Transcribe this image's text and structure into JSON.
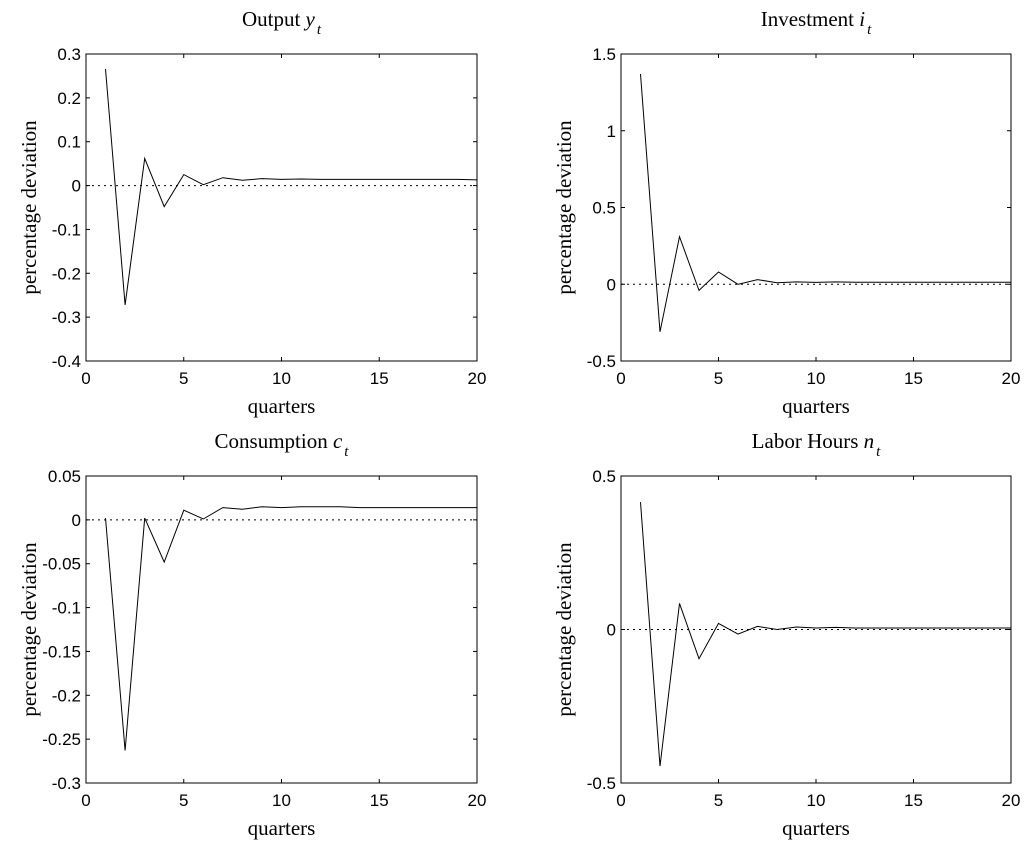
{
  "chart_data": [
    {
      "type": "line",
      "title": "Output",
      "title_var": "y",
      "title_sub": "t",
      "xlabel": "quarters",
      "ylabel": "percentage deviation",
      "xlim": [
        0,
        20
      ],
      "ylim": [
        -0.4,
        0.3
      ],
      "xticks": [
        0,
        5,
        10,
        15,
        20
      ],
      "yticks": [
        -0.4,
        -0.3,
        -0.2,
        -0.1,
        0,
        0.1,
        0.2,
        0.3
      ],
      "ytick_labels": [
        "-0.4",
        "-0.3",
        "-0.2",
        "-0.1",
        "0",
        "0.1",
        "0.2",
        "0.3"
      ],
      "grid": false,
      "x": [
        1,
        2,
        3,
        4,
        5,
        6,
        7,
        8,
        9,
        10,
        11,
        12,
        13,
        14,
        15,
        16,
        17,
        18,
        19,
        20
      ],
      "series": [
        {
          "values": [
            0.266,
            -0.272,
            0.062,
            -0.048,
            0.025,
            0.002,
            0.018,
            0.012,
            0.016,
            0.014,
            0.015,
            0.014,
            0.014,
            0.014,
            0.014,
            0.014,
            0.014,
            0.014,
            0.014,
            0.013
          ]
        }
      ],
      "reference_line": {
        "y": 0,
        "style": "dotted"
      }
    },
    {
      "type": "line",
      "title": "Investment",
      "title_var": "i",
      "title_sub": "t",
      "xlabel": "quarters",
      "ylabel": "percentage deviation",
      "xlim": [
        0,
        20
      ],
      "ylim": [
        -0.5,
        1.5
      ],
      "xticks": [
        0,
        5,
        10,
        15,
        20
      ],
      "yticks": [
        -0.5,
        0,
        0.5,
        1,
        1.5
      ],
      "ytick_labels": [
        "-0.5",
        "0",
        "0.5",
        "1",
        "1.5"
      ],
      "grid": false,
      "x": [
        1,
        2,
        3,
        4,
        5,
        6,
        7,
        8,
        9,
        10,
        11,
        12,
        13,
        14,
        15,
        16,
        17,
        18,
        19,
        20
      ],
      "series": [
        {
          "values": [
            1.37,
            -0.31,
            0.31,
            -0.04,
            0.08,
            0.0,
            0.03,
            0.01,
            0.015,
            0.012,
            0.015,
            0.013,
            0.013,
            0.013,
            0.013,
            0.013,
            0.013,
            0.013,
            0.013,
            0.013
          ]
        }
      ],
      "reference_line": {
        "y": 0,
        "style": "dotted"
      }
    },
    {
      "type": "line",
      "title": "Consumption",
      "title_var": "c",
      "title_sub": "t",
      "xlabel": "quarters",
      "ylabel": "percentage deviation",
      "xlim": [
        0,
        20
      ],
      "ylim": [
        -0.3,
        0.05
      ],
      "xticks": [
        0,
        5,
        10,
        15,
        20
      ],
      "yticks": [
        -0.3,
        -0.25,
        -0.2,
        -0.15,
        -0.1,
        -0.05,
        0,
        0.05
      ],
      "ytick_labels": [
        "-0.3",
        "-0.25",
        "-0.2",
        "-0.15",
        "-0.1",
        "-0.05",
        "0",
        "0.05"
      ],
      "grid": false,
      "x": [
        1,
        2,
        3,
        4,
        5,
        6,
        7,
        8,
        9,
        10,
        11,
        12,
        13,
        14,
        15,
        16,
        17,
        18,
        19,
        20
      ],
      "series": [
        {
          "values": [
            0.002,
            -0.263,
            0.002,
            -0.048,
            0.011,
            0.001,
            0.014,
            0.012,
            0.015,
            0.014,
            0.015,
            0.015,
            0.015,
            0.014,
            0.014,
            0.014,
            0.014,
            0.014,
            0.014,
            0.014
          ]
        }
      ],
      "reference_line": {
        "y": 0,
        "style": "dotted"
      }
    },
    {
      "type": "line",
      "title": "Labor Hours",
      "title_var": "n",
      "title_sub": "t",
      "xlabel": "quarters",
      "ylabel": "percentage deviation",
      "xlim": [
        0,
        20
      ],
      "ylim": [
        -0.5,
        0.5
      ],
      "xticks": [
        0,
        5,
        10,
        15,
        20
      ],
      "yticks": [
        -0.5,
        0,
        0.5
      ],
      "ytick_labels": [
        "-0.5",
        "0",
        "0.5"
      ],
      "grid": false,
      "x": [
        1,
        2,
        3,
        4,
        5,
        6,
        7,
        8,
        9,
        10,
        11,
        12,
        13,
        14,
        15,
        16,
        17,
        18,
        19,
        20
      ],
      "series": [
        {
          "values": [
            0.415,
            -0.445,
            0.085,
            -0.095,
            0.02,
            -0.015,
            0.01,
            0.0,
            0.008,
            0.005,
            0.007,
            0.005,
            0.005,
            0.005,
            0.005,
            0.005,
            0.005,
            0.005,
            0.005,
            0.005
          ]
        }
      ],
      "reference_line": {
        "y": 0,
        "style": "dotted"
      }
    }
  ]
}
